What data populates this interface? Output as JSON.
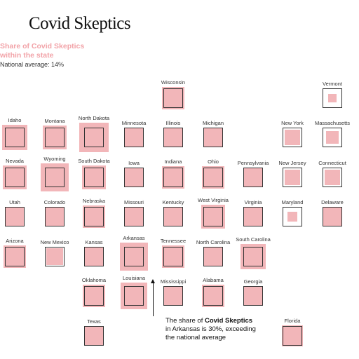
{
  "title": "Covid Skeptics",
  "legend": {
    "line1": "Share of Covid Skeptics",
    "line2": "within the state",
    "national_average": "National average: 14%"
  },
  "annotation": {
    "line1_pre": "The share of ",
    "line1_bold": "Covid Skeptics",
    "line2": "in Arkansas is 30%, exceeding",
    "line3": "the national average"
  },
  "colors": {
    "fill": "#f2b6b9",
    "frame": "#333333",
    "text": "#333333",
    "legend": "#f2a3a8"
  },
  "chart_data": {
    "type": "tile-map",
    "national_average": 14,
    "units": "percent",
    "states": [
      {
        "name": "Wisconsin",
        "value": 19
      },
      {
        "name": "Vermont",
        "value": 3
      },
      {
        "name": "Idaho",
        "value": 24
      },
      {
        "name": "Montana",
        "value": 20
      },
      {
        "name": "North Dakota",
        "value": 32
      },
      {
        "name": "Minnesota",
        "value": 14
      },
      {
        "name": "Illinois",
        "value": 13
      },
      {
        "name": "Michigan",
        "value": 14
      },
      {
        "name": "New York",
        "value": 8
      },
      {
        "name": "Massachusetts",
        "value": 6
      },
      {
        "name": "Nevada",
        "value": 21
      },
      {
        "name": "Wyoming",
        "value": 28
      },
      {
        "name": "South Dakota",
        "value": 21
      },
      {
        "name": "Iowa",
        "value": 14
      },
      {
        "name": "Indiana",
        "value": 19
      },
      {
        "name": "Ohio",
        "value": 18
      },
      {
        "name": "Pennsylvania",
        "value": 14
      },
      {
        "name": "New Jersey",
        "value": 8
      },
      {
        "name": "Connecticut",
        "value": 8
      },
      {
        "name": "Utah",
        "value": 14
      },
      {
        "name": "Colorado",
        "value": 14
      },
      {
        "name": "Nebraska",
        "value": 18
      },
      {
        "name": "Missouri",
        "value": 14
      },
      {
        "name": "Kentucky",
        "value": 14
      },
      {
        "name": "West Virginia",
        "value": 21
      },
      {
        "name": "Virginia",
        "value": 14
      },
      {
        "name": "Maryland",
        "value": 4
      },
      {
        "name": "Delaware",
        "value": 14
      },
      {
        "name": "Arizona",
        "value": 18
      },
      {
        "name": "New Mexico",
        "value": 11
      },
      {
        "name": "Kansas",
        "value": 14
      },
      {
        "name": "Arkansas",
        "value": 30
      },
      {
        "name": "Tennessee",
        "value": 19
      },
      {
        "name": "North Carolina",
        "value": 14
      },
      {
        "name": "South Carolina",
        "value": 22
      },
      {
        "name": "Oklahoma",
        "value": 18
      },
      {
        "name": "Louisiana",
        "value": 26
      },
      {
        "name": "Mississippi",
        "value": 14
      },
      {
        "name": "Alabama",
        "value": 19
      },
      {
        "name": "Georgia",
        "value": 12
      },
      {
        "name": "Texas",
        "value": 14
      },
      {
        "name": "Florida",
        "value": 16
      }
    ]
  }
}
